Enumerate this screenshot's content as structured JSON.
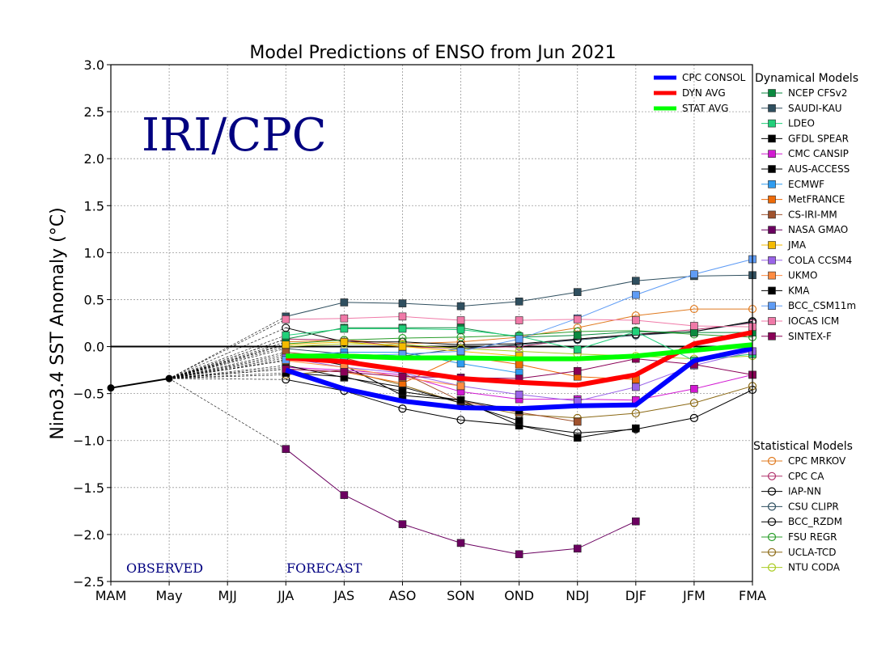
{
  "chart_data": {
    "type": "line",
    "title": "Model Predictions of ENSO from Jun 2021",
    "xlabel": "",
    "ylabel": "Nino3.4 SST Anomaly (°C)",
    "ylim": [
      -2.5,
      3.0
    ],
    "yticks": [
      -2.5,
      -2.0,
      -1.5,
      -1.0,
      -0.5,
      0.0,
      0.5,
      1.0,
      1.5,
      2.0,
      2.5,
      3.0
    ],
    "ytick_labels": [
      "−2.5",
      "−2.0",
      "−1.5",
      "−1.0",
      "−0.5",
      "0.0",
      "0.5",
      "1.0",
      "1.5",
      "2.0",
      "2.5",
      "3.0"
    ],
    "categories": [
      "MAM",
      "May",
      "MJJ",
      "JJA",
      "JAS",
      "ASO",
      "SON",
      "OND",
      "NDJ",
      "DJF",
      "JFM",
      "FMA"
    ],
    "grid": true,
    "watermark": "IRI/CPC",
    "annotations": {
      "observed": "OBSERVED",
      "forecast": "FORECAST"
    },
    "observed": {
      "values": [
        -0.44,
        -0.34
      ],
      "color": "#000000"
    },
    "consensus_header": "",
    "consensus": [
      {
        "name": "CPC CONSOL",
        "color": "#0000ff",
        "values": [
          null,
          null,
          null,
          -0.25,
          -0.45,
          -0.58,
          -0.65,
          -0.66,
          -0.63,
          -0.62,
          -0.15,
          -0.02
        ]
      },
      {
        "name": "DYN AVG",
        "color": "#ff0000",
        "values": [
          null,
          null,
          null,
          -0.12,
          -0.16,
          -0.25,
          -0.34,
          -0.38,
          -0.41,
          -0.3,
          0.03,
          0.15
        ]
      },
      {
        "name": "STAT AVG",
        "color": "#00ff00",
        "values": [
          null,
          null,
          null,
          -0.1,
          -0.1,
          -0.12,
          -0.12,
          -0.13,
          -0.13,
          -0.1,
          -0.04,
          0.02
        ]
      }
    ],
    "dynamical_header": "Dynamical Models",
    "dynamical": [
      {
        "name": "NCEP CFSv2",
        "color": "#0a8a3f",
        "values": [
          null,
          null,
          null,
          0.08,
          0.2,
          0.2,
          0.2,
          0.1,
          0.12,
          0.16,
          0.15,
          0.15
        ]
      },
      {
        "name": "SAUDI-KAU",
        "color": "#2f4f5f",
        "values": [
          null,
          null,
          null,
          0.32,
          0.47,
          0.46,
          0.43,
          0.48,
          0.58,
          0.7,
          0.75,
          0.76
        ]
      },
      {
        "name": "LDEO",
        "color": "#21d07a",
        "values": [
          null,
          null,
          null,
          0.12,
          0.19,
          0.19,
          0.18,
          0.11,
          -0.03,
          0.16,
          -0.15,
          -0.08
        ]
      },
      {
        "name": "GFDL SPEAR",
        "color": "#000000",
        "values": [
          null,
          null,
          null,
          -0.08,
          -0.2,
          -0.52,
          -0.57,
          -0.84,
          -0.97,
          -0.87,
          null,
          null
        ]
      },
      {
        "name": "CMC CANSIP",
        "color": "#d21ad2",
        "values": [
          null,
          null,
          null,
          -0.22,
          -0.25,
          -0.3,
          -0.48,
          -0.56,
          -0.56,
          -0.57,
          -0.45,
          -0.3
        ]
      },
      {
        "name": "AUS-ACCESS",
        "color": "#000000",
        "values": [
          null,
          null,
          null,
          -0.2,
          -0.33,
          -0.43,
          -0.6,
          -0.79,
          null,
          null,
          null,
          null
        ]
      },
      {
        "name": "ECMWF",
        "color": "#2e9cf0",
        "values": [
          null,
          null,
          null,
          -0.1,
          -0.06,
          -0.06,
          -0.18,
          -0.28,
          null,
          null,
          null,
          null
        ]
      },
      {
        "name": "MetFRANCE",
        "color": "#ee6a08",
        "values": [
          null,
          null,
          null,
          -0.24,
          -0.27,
          -0.39,
          -0.1,
          -0.19,
          -0.32,
          -0.35,
          null,
          null
        ]
      },
      {
        "name": "CS-IRI-MM",
        "color": "#a0522d",
        "values": [
          null,
          null,
          null,
          -0.06,
          -0.12,
          -0.28,
          -0.58,
          -0.7,
          -0.8,
          null,
          null,
          null
        ]
      },
      {
        "name": "NASA GMAO",
        "color": "#6b0060",
        "values": [
          null,
          null,
          null,
          -1.09,
          -1.58,
          -1.89,
          -2.09,
          -2.21,
          -2.15,
          -1.86,
          null,
          null
        ]
      },
      {
        "name": "JMA",
        "color": "#f5bb00",
        "values": [
          null,
          null,
          null,
          0.02,
          0.05,
          0.0,
          -0.05,
          -0.1,
          null,
          null,
          null,
          null
        ]
      },
      {
        "name": "COLA CCSM4",
        "color": "#9a64e8",
        "values": [
          null,
          null,
          null,
          -0.12,
          -0.22,
          -0.28,
          -0.42,
          -0.51,
          -0.58,
          -0.43,
          -0.2,
          -0.05
        ]
      },
      {
        "name": "UKMO",
        "color": "#ff8c42",
        "values": [
          null,
          null,
          null,
          -0.15,
          -0.22,
          -0.33,
          -0.42,
          null,
          null,
          null,
          null,
          null
        ]
      },
      {
        "name": "KMA",
        "color": "#000000",
        "values": [
          null,
          null,
          null,
          -0.28,
          -0.32,
          -0.48,
          -0.57,
          -0.68,
          null,
          null,
          null,
          null
        ]
      },
      {
        "name": "BCC_CSM11m",
        "color": "#5f9cf5",
        "values": [
          null,
          null,
          null,
          -0.14,
          -0.1,
          -0.08,
          -0.05,
          0.08,
          0.3,
          0.55,
          0.77,
          0.93
        ]
      },
      {
        "name": "IOCAS ICM",
        "color": "#f07aa8",
        "values": [
          null,
          null,
          null,
          0.29,
          0.3,
          0.32,
          0.28,
          0.28,
          0.29,
          0.28,
          0.22,
          0.21
        ]
      },
      {
        "name": "SINTEX-F",
        "color": "#8a0057",
        "values": [
          null,
          null,
          null,
          -0.24,
          -0.27,
          -0.32,
          -0.33,
          -0.34,
          -0.26,
          -0.13,
          -0.19,
          -0.3
        ]
      }
    ],
    "statistical_header": "Statistical Models",
    "statistical": [
      {
        "name": "CPC MRKOV",
        "color": "#e07b21",
        "values": [
          null,
          null,
          null,
          0.05,
          0.07,
          0.03,
          0.05,
          0.1,
          0.2,
          0.33,
          0.4,
          0.4
        ]
      },
      {
        "name": "CPC CA",
        "color": "#b0306a",
        "values": [
          null,
          null,
          null,
          0.08,
          0.07,
          0.0,
          -0.02,
          0.0,
          0.08,
          0.13,
          0.18,
          0.25
        ]
      },
      {
        "name": "IAP-NN",
        "color": "#000000",
        "values": [
          null,
          null,
          null,
          -0.35,
          -0.47,
          -0.66,
          -0.78,
          -0.84,
          -0.92,
          -0.88,
          -0.76,
          -0.46
        ]
      },
      {
        "name": "CSU CLIPR",
        "color": "#2f4f5f",
        "values": [
          null,
          null,
          null,
          -0.02,
          -0.08,
          -0.1,
          -0.02,
          0.02,
          0.07,
          0.12,
          0.16,
          0.26
        ]
      },
      {
        "name": "BCC_RZDM",
        "color": "#000000",
        "values": [
          null,
          null,
          null,
          0.2,
          0.05,
          0.05,
          0.02,
          0.03,
          0.08,
          0.13,
          0.16,
          0.27
        ]
      },
      {
        "name": "FSU REGR",
        "color": "#2a9d2a",
        "values": [
          null,
          null,
          null,
          0.03,
          0.07,
          0.09,
          0.1,
          0.12,
          0.16,
          0.17,
          0.13,
          0.1
        ]
      },
      {
        "name": "UCLA-TCD",
        "color": "#8b6914",
        "values": [
          null,
          null,
          null,
          -0.3,
          -0.25,
          -0.41,
          -0.6,
          -0.72,
          -0.76,
          -0.71,
          -0.6,
          -0.42
        ]
      },
      {
        "name": "NTU CODA",
        "color": "#aacc22",
        "values": [
          null,
          null,
          null,
          0.0,
          0.03,
          0.02,
          -0.02,
          -0.05,
          -0.08,
          -0.1,
          -0.13,
          -0.1
        ]
      }
    ]
  }
}
